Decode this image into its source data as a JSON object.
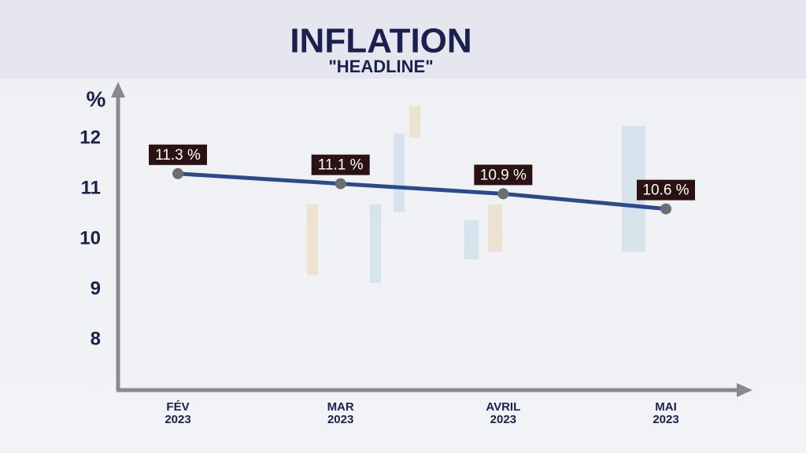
{
  "chart_data": {
    "type": "line",
    "title": "INFLATION",
    "subtitle": "\"HEADLINE\"",
    "y_label": "%",
    "categories": [
      "FÉV 2023",
      "MAR 2023",
      "AVRIL 2023",
      "MAI 2023"
    ],
    "series": [
      {
        "name": "Inflation",
        "color": "#2b4a8c",
        "values": [
          11.3,
          11.1,
          10.9,
          10.6
        ],
        "value_labels": [
          "11.3 %",
          "11.1 %",
          "10.9 %",
          "10.6 %"
        ]
      }
    ],
    "ylim": [
      7,
      13
    ],
    "yticks": [
      8,
      9,
      10,
      11,
      12
    ]
  }
}
